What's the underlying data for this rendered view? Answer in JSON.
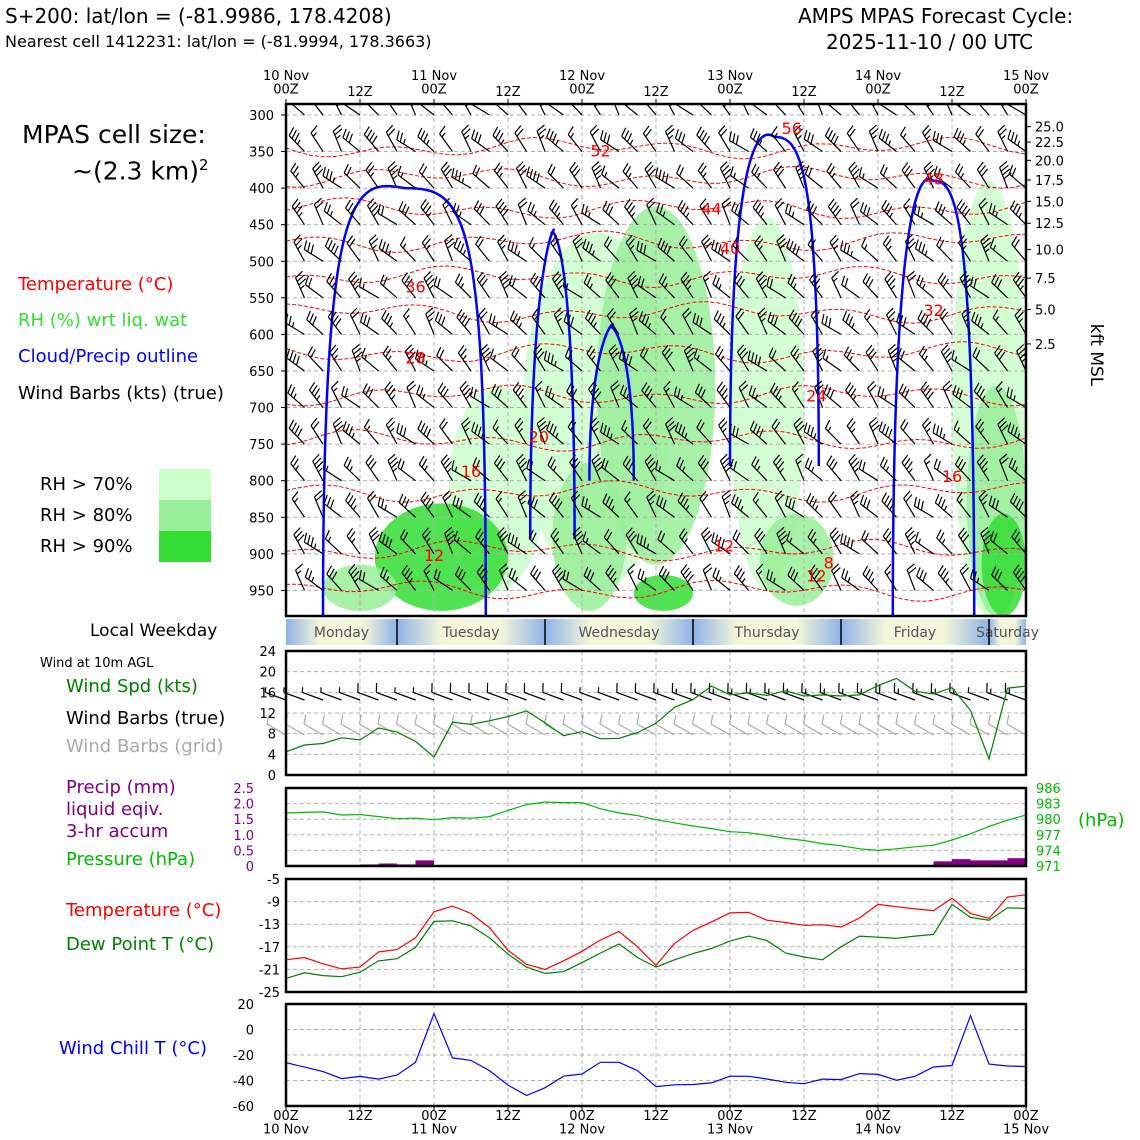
{
  "header": {
    "line1": "S+200: lat/lon = (-81.9986, 178.4208)",
    "line2": "Nearest cell 1412231: lat/lon = (-81.9994, 178.3663)",
    "cycle_title": "AMPS MPAS Forecast Cycle:",
    "cycle_time": "2025-11-10 / 00 UTC"
  },
  "left_panel": {
    "cell_size_title": "MPAS cell size:",
    "cell_size_value": "~(2.3 km)",
    "cell_size_exp": "2",
    "legend_temperature": "Temperature (°C)",
    "legend_rh": "RH (%) wrt liq. wat",
    "legend_cloud": "Cloud/Precip outline",
    "legend_wind": "Wind Barbs (kts) (true)",
    "rh70": "RH > 70%",
    "rh80": "RH > 80%",
    "rh90": "RH > 90%",
    "local_weekday": "Local Weekday",
    "wind_10m": "Wind at 10m AGL",
    "wind_spd": "Wind Spd (kts)",
    "wind_barbs_true": "Wind Barbs (true)",
    "wind_barbs_grid": "Wind Barbs (grid)",
    "precip_l1": "Precip (mm)",
    "precip_l2": "liquid eqiv.",
    "precip_l3": "3-hr accum",
    "pressure": "Pressure (hPa)",
    "temp": "Temperature (°C)",
    "dewpoint": "Dew Point T (°C)",
    "windchill": "Wind Chill T (°C)"
  },
  "colors": {
    "temperature": "#ff0000",
    "rh70": "#ccffcc",
    "rh80": "#99ee99",
    "rh90": "#33dd33",
    "cloud": "#0000ff",
    "wind_spd": "#008000",
    "precip": "#800080",
    "pressure": "#00bb00",
    "dewpoint": "#008000",
    "windchill": "#0000ff",
    "grid_barb": "#aaaaaa"
  },
  "chart_data": [
    {
      "type": "cross-section",
      "title": "Time-height cross section",
      "x": {
        "ticks_top": [
          "10 Nov\n00Z",
          "12Z",
          "11 Nov\n00Z",
          "12Z",
          "12 Nov\n00Z",
          "12Z",
          "13 Nov\n00Z",
          "12Z",
          "14 Nov\n00Z",
          "12Z",
          "15 Nov\n00Z"
        ],
        "range_hours": [
          0,
          120
        ]
      },
      "ylabel_left": "hPa",
      "yticks_left": [
        300,
        350,
        400,
        450,
        500,
        550,
        600,
        650,
        700,
        750,
        800,
        850,
        900,
        950
      ],
      "ylim": [
        285,
        985
      ],
      "ylabel_right": "kft MSL",
      "yticks_right": [
        {
          "label": "25.0",
          "p": 316
        },
        {
          "label": "22.5",
          "p": 337
        },
        {
          "label": "20.0",
          "p": 362
        },
        {
          "label": "17.5",
          "p": 389
        },
        {
          "label": "15.0",
          "p": 418
        },
        {
          "label": "12.5",
          "p": 448
        },
        {
          "label": "10.0",
          "p": 484
        },
        {
          "label": "7.5",
          "p": 523
        },
        {
          "label": "5.0",
          "p": 566
        },
        {
          "label": "2.5",
          "p": 613
        }
      ],
      "temperature_contours": [
        {
          "level": "-52",
          "p": 345
        },
        {
          "level": "-48",
          "p": 385
        },
        {
          "level": "-44",
          "p": 428
        },
        {
          "level": "-40",
          "p": 473
        },
        {
          "level": "-36",
          "p": 521
        },
        {
          "level": "-32",
          "p": 570
        },
        {
          "level": "-28",
          "p": 625
        },
        {
          "level": "-24",
          "p": 683
        },
        {
          "level": "-20",
          "p": 745
        },
        {
          "level": "-16",
          "p": 815
        },
        {
          "level": "-12",
          "p": 895
        },
        {
          "level": "-8",
          "p": 950
        }
      ],
      "contour_labels": [
        {
          "text": "56",
          "h": 82,
          "p": 326
        },
        {
          "text": "52",
          "h": 51,
          "p": 357
        },
        {
          "text": "48",
          "h": 105,
          "p": 395
        },
        {
          "text": "44",
          "h": 69,
          "p": 436
        },
        {
          "text": "40",
          "h": 72,
          "p": 490
        },
        {
          "text": "36",
          "h": 21,
          "p": 543
        },
        {
          "text": "32",
          "h": 105,
          "p": 575
        },
        {
          "text": "28",
          "h": 21,
          "p": 640
        },
        {
          "text": "24",
          "h": 86,
          "p": 692
        },
        {
          "text": "20",
          "h": 41,
          "p": 748
        },
        {
          "text": "16",
          "h": 30,
          "p": 795
        },
        {
          "text": "16",
          "h": 108,
          "p": 802
        },
        {
          "text": "12",
          "h": 24,
          "p": 910
        },
        {
          "text": "12",
          "h": 71,
          "p": 897
        },
        {
          "text": "8",
          "h": 88,
          "p": 920
        },
        {
          "text": "12",
          "h": 86,
          "p": 938
        }
      ]
    },
    {
      "type": "weekday-band",
      "days": [
        "Monday",
        "Tuesday",
        "Wednesday",
        "Thursday",
        "Friday",
        "Saturday"
      ],
      "day_starts_hours": [
        -1,
        18,
        42,
        66,
        90,
        114
      ]
    },
    {
      "type": "line",
      "title": "Wind at 10m AGL",
      "ylabel": "kts",
      "ylim": [
        0,
        24
      ],
      "yticks": [
        0,
        4,
        8,
        12,
        16,
        20,
        24
      ],
      "x_hours": [
        0,
        3,
        6,
        9,
        12,
        15,
        18,
        21,
        24,
        27,
        30,
        33,
        36,
        39,
        42,
        45,
        48,
        51,
        54,
        57,
        60,
        63,
        66,
        69,
        72,
        75,
        78,
        81,
        84,
        87,
        90,
        93,
        96,
        99,
        102,
        105,
        108,
        111,
        114,
        117,
        120
      ],
      "series": [
        {
          "name": "Wind Spd (kts)",
          "values": [
            4.5,
            5.8,
            6.1,
            7.2,
            6.8,
            9.1,
            8.3,
            6.5,
            3.5,
            10.2,
            9.8,
            10.5,
            11.3,
            12.4,
            10.1,
            7.6,
            8.4,
            7.0,
            7.1,
            8.2,
            10.0,
            13.1,
            14.6,
            17.2,
            15.5,
            15.9,
            15.4,
            16.3,
            15.3,
            15.5,
            15.3,
            15.5,
            17.3,
            18.7,
            16.2,
            15.7,
            16.9,
            12.5,
            3.1,
            16.8,
            17.2
          ]
        }
      ]
    },
    {
      "type": "bar+line",
      "title": "Precip and Pressure",
      "ylabel_left": "mm",
      "ylim_left": [
        0,
        2.5
      ],
      "yticks_left": [
        0,
        0.5,
        1.0,
        1.5,
        2.0,
        2.5
      ],
      "ylabel_right": "(hPa)",
      "ylim_right": [
        971,
        986
      ],
      "yticks_right": [
        971,
        974,
        977,
        980,
        983,
        986
      ],
      "x_hours": [
        0,
        3,
        6,
        9,
        12,
        15,
        18,
        21,
        24,
        27,
        30,
        33,
        36,
        39,
        42,
        45,
        48,
        51,
        54,
        57,
        60,
        63,
        66,
        69,
        72,
        75,
        78,
        81,
        84,
        87,
        90,
        93,
        96,
        99,
        102,
        105,
        108,
        111,
        114,
        117,
        120
      ],
      "precip_bars": [
        {
          "start_h": 12,
          "end_h": 15,
          "value": 0.05
        },
        {
          "start_h": 15,
          "end_h": 18,
          "value": 0.08
        },
        {
          "start_h": 18,
          "end_h": 21,
          "value": 0.05
        },
        {
          "start_h": 21,
          "end_h": 24,
          "value": 0.18
        },
        {
          "start_h": 105,
          "end_h": 108,
          "value": 0.15
        },
        {
          "start_h": 108,
          "end_h": 111,
          "value": 0.22
        },
        {
          "start_h": 111,
          "end_h": 114,
          "value": 0.18
        },
        {
          "start_h": 114,
          "end_h": 117,
          "value": 0.18
        },
        {
          "start_h": 117,
          "end_h": 120,
          "value": 0.25
        }
      ],
      "series": [
        {
          "name": "Pressure (hPa)",
          "values": [
            981.2,
            981.3,
            981.4,
            980.8,
            980.9,
            980.5,
            980.1,
            980.2,
            979.9,
            980.3,
            980.2,
            980.5,
            981.7,
            982.8,
            983.3,
            983.2,
            983.2,
            982.0,
            981.2,
            980.7,
            979.9,
            979.3,
            978.7,
            978.2,
            977.6,
            977.4,
            976.9,
            976.3,
            975.9,
            975.3,
            974.9,
            974.3,
            974.0,
            974.3,
            974.7,
            975.0,
            976.0,
            977.2,
            978.6,
            979.8,
            980.8
          ]
        }
      ]
    },
    {
      "type": "line",
      "title": "Temperature and Dew Point",
      "ylabel": "°C",
      "ylim": [
        -25,
        -5
      ],
      "yticks": [
        -5,
        -9,
        -13,
        -17,
        -21,
        -25
      ],
      "x_hours": [
        0,
        3,
        6,
        9,
        12,
        15,
        18,
        21,
        24,
        27,
        30,
        33,
        36,
        39,
        42,
        45,
        48,
        51,
        54,
        57,
        60,
        63,
        66,
        69,
        72,
        75,
        78,
        81,
        84,
        87,
        90,
        93,
        96,
        99,
        102,
        105,
        108,
        111,
        114,
        117,
        120
      ],
      "series": [
        {
          "name": "Temperature (°C)",
          "values": [
            -19.3,
            -18.9,
            -20.0,
            -20.9,
            -20.6,
            -17.9,
            -17.5,
            -15.4,
            -10.8,
            -9.8,
            -11.1,
            -13.6,
            -17.6,
            -20.1,
            -21.0,
            -19.5,
            -17.8,
            -15.8,
            -14.3,
            -17.0,
            -20.3,
            -16.4,
            -14.1,
            -12.6,
            -11.0,
            -10.9,
            -12.3,
            -12.7,
            -13.2,
            -13.1,
            -13.5,
            -11.9,
            -9.5,
            -9.9,
            -10.3,
            -10.6,
            -8.4,
            -11.1,
            -12.0,
            -8.2,
            -7.8
          ]
        },
        {
          "name": "Dew Point T (°C)",
          "values": [
            -22.6,
            -21.6,
            -22.1,
            -22.3,
            -21.5,
            -19.5,
            -19.1,
            -17.1,
            -12.5,
            -12.4,
            -13.3,
            -15.4,
            -18.3,
            -20.6,
            -21.7,
            -21.4,
            -19.8,
            -18.1,
            -16.5,
            -18.9,
            -20.6,
            -19.3,
            -18.2,
            -17.3,
            -16.0,
            -15.1,
            -15.9,
            -18.1,
            -18.8,
            -19.3,
            -17.0,
            -15.1,
            -15.3,
            -15.5,
            -15.1,
            -14.8,
            -9.5,
            -11.8,
            -12.3,
            -10.1,
            -10.2
          ]
        }
      ]
    },
    {
      "type": "line",
      "title": "Wind Chill",
      "ylabel": "°C",
      "ylim": [
        -60,
        20
      ],
      "yticks": [
        20,
        0,
        -20,
        -40,
        -60
      ],
      "xticks_bottom": [
        "00Z\n10 Nov",
        "12Z",
        "00Z\n11 Nov",
        "12Z",
        "00Z\n12 Nov",
        "12Z",
        "00Z\n13 Nov",
        "12Z",
        "00Z\n14 Nov",
        "12Z",
        "00Z\n15 Nov"
      ],
      "x_hours": [
        0,
        3,
        6,
        9,
        12,
        15,
        18,
        21,
        24,
        27,
        30,
        33,
        36,
        39,
        42,
        45,
        48,
        51,
        54,
        57,
        60,
        63,
        66,
        69,
        72,
        75,
        78,
        81,
        84,
        87,
        90,
        93,
        96,
        99,
        102,
        105,
        108,
        111,
        114,
        117,
        120
      ],
      "series": [
        {
          "name": "Wind Chill T (°C)",
          "values": [
            -26,
            -29.5,
            -33,
            -38.5,
            -36.8,
            -38.9,
            -35.8,
            -25.8,
            12.5,
            -22.3,
            -24.2,
            -32.2,
            -43.6,
            -51.8,
            -45.7,
            -36.6,
            -34.9,
            -25.7,
            -25.7,
            -32.2,
            -44.8,
            -43.4,
            -43.1,
            -41.9,
            -36.6,
            -36.7,
            -38.8,
            -41.4,
            -42.5,
            -38.9,
            -39.3,
            -34.6,
            -35.2,
            -39.8,
            -36.7,
            -29.4,
            -28.2,
            10.8,
            -27.1,
            -28.6,
            -29.0
          ]
        }
      ]
    }
  ]
}
